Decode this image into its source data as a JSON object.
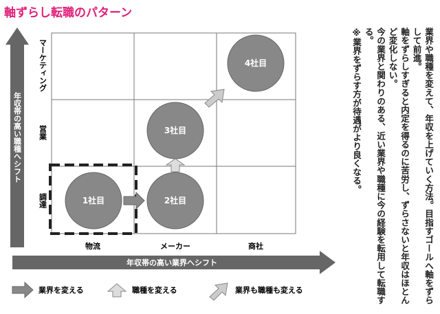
{
  "title": "軸ずらし転職のパターン",
  "rows": [
    "マーケティング",
    "営業",
    "調達"
  ],
  "columns": [
    "物流",
    "メーカー",
    "商社"
  ],
  "nodes": [
    "1社目",
    "2社目",
    "3社目",
    "4社目"
  ],
  "y_axis_label": "年収帯の高い職種へシフト",
  "x_axis_label": "年収帯の高い業界へシフト",
  "legend": [
    "業界を変える",
    "職種を変える",
    "業界も職種も変える"
  ],
  "notes": [
    "業界や職種を変えて、年収を上げていく方法。目指すゴールへ軸をずらして前進。",
    "軸をずらしすぎると内定を得るのに苦労し、ずらさないと年収はほとんど変化しない。",
    "今の業界と関わりのある、近い業界や職種に今の経験を転用して転職する。",
    "※業界をずらす方が待遇がより良くなる。"
  ]
}
